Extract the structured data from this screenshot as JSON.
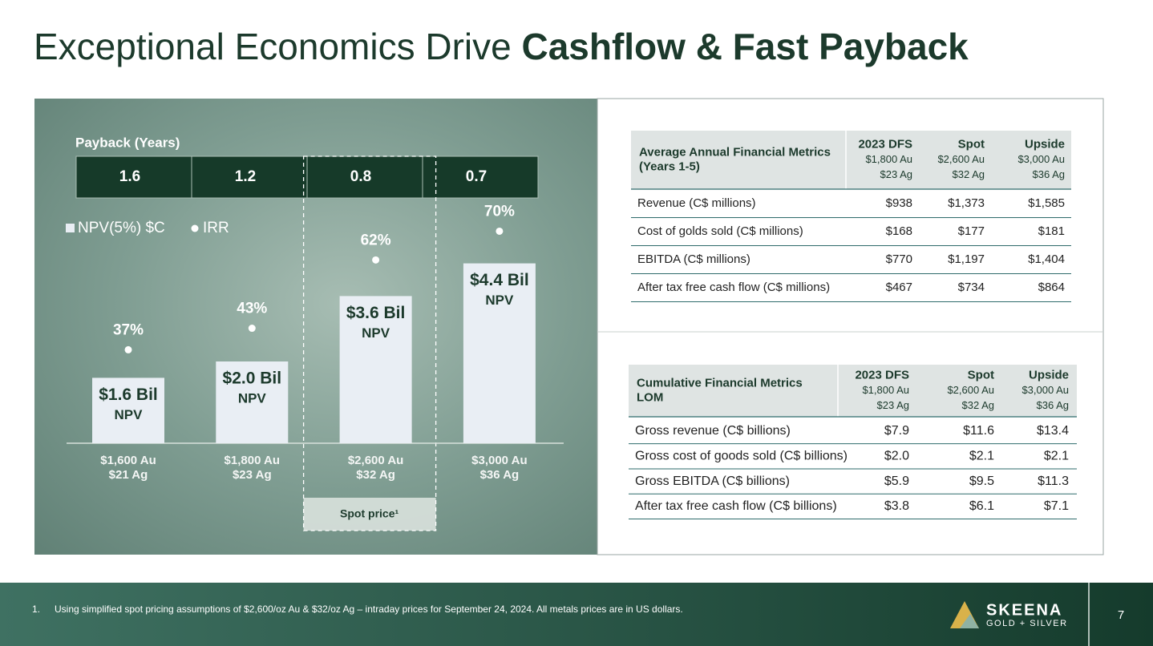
{
  "title": {
    "light": "Exceptional Economics Drive",
    "bold": "Cashflow & Fast Payback"
  },
  "chart_data": {
    "type": "bar",
    "categories": [
      [
        "$1,600 Au",
        "$21 Ag"
      ],
      [
        "$1,800 Au",
        "$23 Ag"
      ],
      [
        "$2,600 Au",
        "$32 Ag"
      ],
      [
        "$3,000 Au",
        "$36 Ag"
      ]
    ],
    "series": [
      {
        "name": "NPV(5%) $C",
        "color": "#e9eef4",
        "values": [
          1.6,
          2.0,
          3.6,
          4.4
        ],
        "value_labels": [
          "$1.6 Bil",
          "$2.0 Bil",
          "$3.6 Bil",
          "$4.4 Bil"
        ],
        "value_label_suffix": "NPV"
      },
      {
        "name": "IRR",
        "color": "#ffffff",
        "axis": "y2",
        "values": [
          37,
          43,
          62,
          70
        ],
        "value_labels": [
          "37%",
          "43%",
          "62%",
          "70%"
        ]
      }
    ],
    "ylim": [
      0,
      8
    ],
    "y2lim": [
      11,
      102
    ],
    "payback": {
      "label": "Payback (Years)",
      "values": [
        1.6,
        1.2,
        0.8,
        0.7
      ]
    },
    "highlight": {
      "index": 2,
      "label": "Spot price¹"
    }
  },
  "tables": [
    {
      "title": [
        "Average Annual Financial Metrics",
        "(Years 1-5)"
      ],
      "columns": [
        [
          "2023 DFS",
          "$1,800 Au",
          "$23 Ag"
        ],
        [
          "Spot",
          "$2,600 Au",
          "$32 Ag"
        ],
        [
          "Upside",
          "$3,000 Au",
          "$36 Ag"
        ]
      ],
      "rows": [
        [
          "Revenue (C$ millions)",
          "$938",
          "$1,373",
          "$1,585"
        ],
        [
          "Cost of golds sold (C$ millions)",
          "$168",
          "$177",
          "$181"
        ],
        [
          "EBITDA (C$ millions)",
          "$770",
          "$1,197",
          "$1,404"
        ],
        [
          "After tax free cash flow (C$ millions)",
          "$467",
          "$734",
          "$864"
        ]
      ]
    },
    {
      "title": [
        "Cumulative Financial Metrics",
        "LOM"
      ],
      "columns": [
        [
          "2023 DFS",
          "$1,800 Au",
          "$23 Ag"
        ],
        [
          "Spot",
          "$2,600 Au",
          "$32 Ag"
        ],
        [
          "Upside",
          "$3,000 Au",
          "$36 Ag"
        ]
      ],
      "rows": [
        [
          "Gross revenue (C$ billions)",
          "$7.9",
          "$11.6",
          "$13.4"
        ],
        [
          "Gross cost of goods sold (C$ billions)",
          "$2.0",
          "$2.1",
          "$2.1"
        ],
        [
          "Gross EBITDA (C$ billions)",
          "$5.9",
          "$9.5",
          "$11.3"
        ],
        [
          "After tax free cash flow (C$ billions)",
          "$3.8",
          "$6.1",
          "$7.1"
        ]
      ]
    }
  ],
  "footer": {
    "note_number": "1.",
    "note": "Using simplified spot pricing assumptions of $2,600/oz Au & $32/oz Ag – intraday prices for September 24, 2024. All metals prices are in US dollars.",
    "logo": "SKEENA",
    "logo_sub": "GOLD + SILVER",
    "page": "7"
  }
}
